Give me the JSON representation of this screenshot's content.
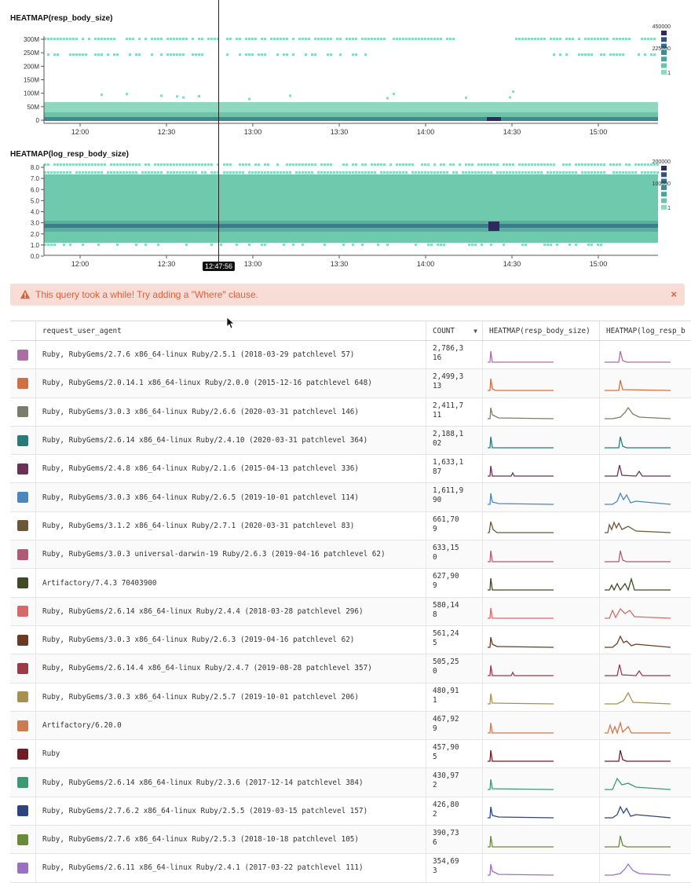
{
  "charts": {
    "hm1": {
      "title": "HEATMAP(resp_body_size)",
      "yticks": [
        "300M",
        "250M",
        "200M",
        "150M",
        "100M",
        "50M",
        "0"
      ],
      "legend": [
        "450000",
        "225000",
        "1"
      ]
    },
    "hm2": {
      "title": "HEATMAP(log_resp_body_size)",
      "yticks": [
        "8.0",
        "7.0",
        "6.0",
        "5.0",
        "4.0",
        "3.0",
        "2.0",
        "1.0",
        "0.0"
      ],
      "legend": [
        "200000",
        "100000",
        "1"
      ]
    },
    "xticks": [
      "12:00",
      "12:30",
      "13:00",
      "13:30",
      "14:00",
      "14:30",
      "15:00"
    ],
    "cursor_time": "12:47:56"
  },
  "chart_data": [
    {
      "type": "heatmap",
      "title": "HEATMAP(resp_body_size)",
      "x_ticks": [
        "12:00",
        "12:30",
        "13:00",
        "13:30",
        "14:00",
        "14:30",
        "15:00"
      ],
      "y_ticks": [
        "0",
        "50M",
        "100M",
        "150M",
        "200M",
        "250M",
        "300M"
      ],
      "color_scale": [
        1,
        225000,
        450000
      ]
    },
    {
      "type": "heatmap",
      "title": "HEATMAP(log_resp_body_size)",
      "x_ticks": [
        "12:00",
        "12:30",
        "13:00",
        "13:30",
        "14:00",
        "14:30",
        "15:00"
      ],
      "y_ticks": [
        "0.0",
        "1.0",
        "2.0",
        "3.0",
        "4.0",
        "5.0",
        "6.0",
        "7.0",
        "8.0"
      ],
      "color_scale": [
        1,
        100000,
        200000
      ]
    }
  ],
  "alert": {
    "message": "This query took a while! Try adding a \"Where\" clause.",
    "close": "×"
  },
  "table": {
    "headers": [
      "request_user_agent",
      "COUNT",
      "HEATMAP(resp_body_size)",
      "HEATMAP(log_resp_body_size)"
    ],
    "header_col4_visible": "HEATMAP(log_resp_b",
    "rows": [
      {
        "agent": "Ruby, RubyGems/2.7.6 x86_64-linux Ruby/2.5.1 (2018-03-29 patchlevel 57)",
        "count": "2,786,3\n16",
        "color": "#a96fa4",
        "shape": "a"
      },
      {
        "agent": "Ruby, RubyGems/2.0.14.1 x86_64-linux Ruby/2.0.0 (2015-12-16 patchlevel 648)",
        "count": "2,499,3\n13",
        "color": "#d06f43",
        "shape": "b"
      },
      {
        "agent": "Ruby, RubyGems/3.0.3 x86_64-linux Ruby/2.6.6 (2020-03-31 patchlevel 146)",
        "count": "2,411,7\n11",
        "color": "#7a7d6a",
        "shape": "c"
      },
      {
        "agent": "Ruby, RubyGems/2.6.14 x86_64-linux Ruby/2.4.10 (2020-03-31 patchlevel 364)",
        "count": "2,188,1\n02",
        "color": "#2a7a78",
        "shape": "a"
      },
      {
        "agent": "Ruby, RubyGems/2.4.8 x86_64-linux Ruby/2.1.6 (2015-04-13 patchlevel 336)",
        "count": "1,633,1\n87",
        "color": "#6a3058",
        "shape": "d"
      },
      {
        "agent": "Ruby, RubyGems/3.0.3 x86_64-linux Ruby/2.6.5 (2019-10-01 patchlevel 114)",
        "count": "1,611,9\n90",
        "color": "#4a86c0",
        "shape": "e"
      },
      {
        "agent": "Ruby, RubyGems/3.1.2 x86_64-linux Ruby/2.7.1 (2020-03-31 patchlevel 83)",
        "count": "661,70\n9",
        "color": "#6c5836",
        "shape": "f"
      },
      {
        "agent": "Ruby, RubyGems/3.0.3 universal-darwin-19 Ruby/2.6.3 (2019-04-16 patchlevel 62)",
        "count": "633,15\n0",
        "color": "#b05a76",
        "shape": "a"
      },
      {
        "agent": "Artifactory/7.4.3 70403900",
        "count": "627,90\n9",
        "color": "#3f4a26",
        "shape": "g"
      },
      {
        "agent": "Ruby, RubyGems/2.6.14 x86_64-linux Ruby/2.4.4 (2018-03-28 patchlevel 296)",
        "count": "580,14\n8",
        "color": "#d66a6a",
        "shape": "h"
      },
      {
        "agent": "Ruby, RubyGems/3.0.3 x86_64-linux Ruby/2.6.3 (2019-04-16 patchlevel 62)",
        "count": "561,24\n5",
        "color": "#6a3a22",
        "shape": "i"
      },
      {
        "agent": "Ruby, RubyGems/2.6.14.4 x86_64-linux Ruby/2.4.7 (2019-08-28 patchlevel 357)",
        "count": "505,25\n0",
        "color": "#9c3a48",
        "shape": "d"
      },
      {
        "agent": "Ruby, RubyGems/3.0.3 x86_64-linux Ruby/2.5.7 (2019-10-01 patchlevel 206)",
        "count": "480,91\n1",
        "color": "#a89050",
        "shape": "j"
      },
      {
        "agent": "Artifactory/6.20.0",
        "count": "467,92\n9",
        "color": "#cc7a52",
        "shape": "k"
      },
      {
        "agent": "Ruby",
        "count": "457,90\n5",
        "color": "#6e1e22",
        "shape": "a"
      },
      {
        "agent": "Ruby, RubyGems/2.6.14 x86_64-linux Ruby/2.3.6 (2017-12-14 patchlevel 384)",
        "count": "430,97\n2",
        "color": "#3c9a72",
        "shape": "l"
      },
      {
        "agent": "Ruby, RubyGems/2.7.6.2 x86_64-linux Ruby/2.5.5 (2019-03-15 patchlevel 157)",
        "count": "426,80\n2",
        "color": "#2e4480",
        "shape": "e"
      },
      {
        "agent": "Ruby, RubyGems/2.7.6 x86_64-linux Ruby/2.5.3 (2018-10-18 patchlevel 105)",
        "count": "390,73\n6",
        "color": "#6a8a3a",
        "shape": "a"
      },
      {
        "agent": "Ruby, RubyGems/2.6.11 x86_64-linux Ruby/2.4.1 (2017-03-22 patchlevel 111)",
        "count": "354,69\n3",
        "color": "#9a70c0",
        "shape": "c"
      }
    ]
  }
}
